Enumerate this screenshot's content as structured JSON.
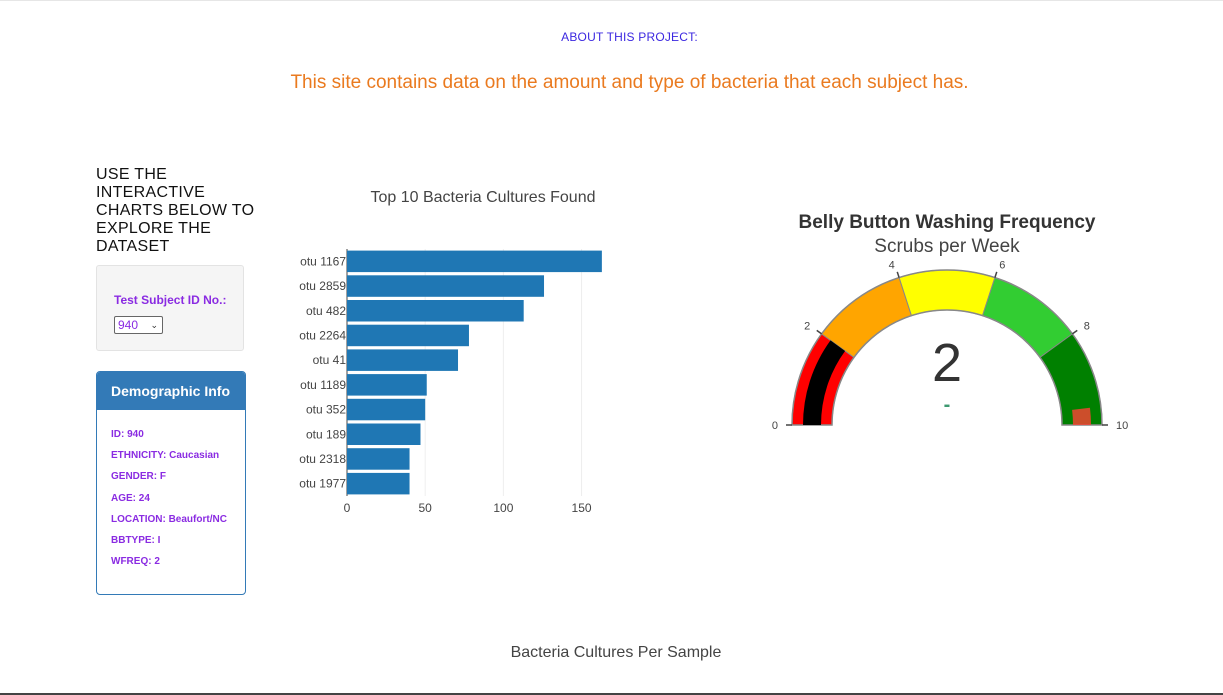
{
  "header": {
    "about": "ABOUT THIS PROJECT:",
    "tagline": "This site contains data on the amount and type of bacteria that each subject has."
  },
  "sidebar": {
    "intro": "USE THE INTERACTIVE CHARTS BELOW TO EXPLORE THE DATASET",
    "select_label": "Test Subject ID No.:",
    "selected_id": "940",
    "demo_title": "Demographic Info",
    "demo_rows": [
      "ID: 940",
      "ETHNICITY: Caucasian",
      "GENDER: F",
      "AGE: 24",
      "LOCATION: Beaufort/NC",
      "BBTYPE: I",
      "WFREQ: 2"
    ]
  },
  "bubble_title": "Bacteria Cultures Per Sample",
  "chart_data": [
    {
      "type": "bar",
      "orientation": "horizontal",
      "title": "Top 10 Bacteria Cultures Found",
      "categories": [
        "otu 1167",
        "otu 2859",
        "otu 482",
        "otu 2264",
        "otu 41",
        "otu 1189",
        "otu 352",
        "otu 189",
        "otu 2318",
        "otu 1977"
      ],
      "values": [
        163,
        126,
        113,
        78,
        71,
        51,
        50,
        47,
        40,
        40
      ],
      "xticks": [
        0,
        50,
        100,
        150
      ],
      "xlim": [
        0,
        165
      ],
      "color": "#1f77b4",
      "grid": true
    },
    {
      "type": "gauge",
      "title": "Belly Button Washing Frequency",
      "subtitle": "Scrubs per Week",
      "value": 2,
      "range": [
        0,
        10
      ],
      "ticks": [
        "0",
        "2",
        "4",
        "6",
        "8",
        "10"
      ],
      "steps": [
        {
          "from": 0,
          "to": 2,
          "color": "#ff0000"
        },
        {
          "from": 2,
          "to": 4,
          "color": "#ffa500"
        },
        {
          "from": 4,
          "to": 6,
          "color": "#ffff00"
        },
        {
          "from": 6,
          "to": 8,
          "color": "#32cd32"
        },
        {
          "from": 8,
          "to": 10,
          "color": "#008000"
        }
      ],
      "bar_color": "#000000",
      "delta_text": "-"
    }
  ]
}
